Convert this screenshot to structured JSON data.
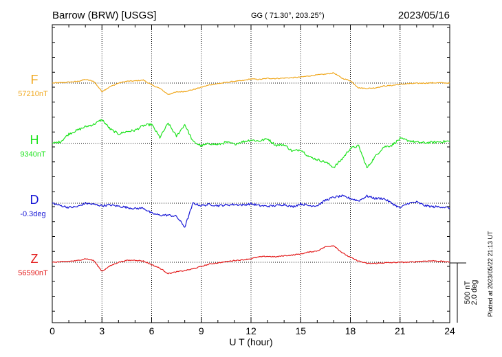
{
  "header": {
    "station": "Barrow (BRW)  [USGS]",
    "coords": "GG ( 71.30°, 203.25°)",
    "date": "2023/05/16"
  },
  "footer": {
    "xlabel": "U T (hour)",
    "plotted_note": "Plotted at 2023/05/22 21:13 UT"
  },
  "scale": {
    "line1": "500 nT",
    "line2": "2.0 deg"
  },
  "chart_data": {
    "type": "line",
    "title": "Barrow (BRW)  [USGS]",
    "xlabel": "U T (hour)",
    "xlim": [
      0,
      24
    ],
    "x_ticks": [
      "0",
      "3",
      "6",
      "9",
      "12",
      "15",
      "18",
      "21",
      "24"
    ],
    "grid": true,
    "x": [
      0,
      0.5,
      1,
      1.5,
      2,
      2.5,
      3,
      3.5,
      4,
      4.5,
      5,
      5.5,
      6,
      6.5,
      7,
      7.5,
      8,
      8.5,
      9,
      9.5,
      10,
      10.5,
      11,
      11.5,
      12,
      12.5,
      13,
      13.5,
      14,
      14.5,
      15,
      15.5,
      16,
      16.5,
      17,
      17.5,
      18,
      18.5,
      19,
      19.5,
      20,
      20.5,
      21,
      21.5,
      22,
      22.5,
      23,
      23.5,
      24
    ],
    "series": [
      {
        "name": "F",
        "baseline": "57210nT",
        "color": "#f0a81e",
        "values": [
          0,
          3,
          8,
          13,
          30,
          15,
          -70,
          -30,
          0,
          15,
          18,
          25,
          -15,
          -45,
          -95,
          -75,
          -70,
          -55,
          -35,
          -15,
          -5,
          5,
          15,
          20,
          35,
          30,
          40,
          38,
          42,
          45,
          50,
          60,
          68,
          75,
          85,
          40,
          20,
          -40,
          -45,
          -40,
          -25,
          -20,
          -10,
          -5,
          -2,
          0,
          2,
          2,
          0
        ],
        "noise": 8
      },
      {
        "name": "H",
        "baseline": "9340nT",
        "color": "#1de31d",
        "values": [
          0,
          15,
          80,
          110,
          140,
          160,
          200,
          120,
          80,
          100,
          110,
          150,
          160,
          50,
          170,
          60,
          160,
          15,
          -20,
          0,
          -10,
          10,
          -5,
          15,
          30,
          20,
          40,
          -15,
          -10,
          -65,
          -50,
          -110,
          -135,
          -155,
          -200,
          -130,
          -40,
          -20,
          -205,
          -110,
          -30,
          -15,
          40,
          25,
          10,
          5,
          10,
          15,
          20
        ],
        "noise": 20
      },
      {
        "name": "D",
        "baseline": "-0.3deg",
        "color": "#1616d6",
        "values": [
          0,
          -20,
          -35,
          -30,
          0,
          -10,
          -20,
          -15,
          -25,
          -35,
          -45,
          -40,
          -85,
          -100,
          -100,
          -110,
          -200,
          0,
          -20,
          -10,
          -20,
          -15,
          -10,
          -15,
          -5,
          -20,
          -25,
          -20,
          -10,
          -30,
          -5,
          -20,
          -20,
          25,
          50,
          60,
          40,
          20,
          60,
          40,
          40,
          0,
          -40,
          0,
          10,
          -20,
          -30,
          -30,
          -40
        ],
        "noise": 18
      },
      {
        "name": "Z",
        "baseline": "56590nT",
        "color": "#e31b1b",
        "values": [
          0,
          3,
          8,
          13,
          30,
          15,
          -75,
          -30,
          0,
          15,
          18,
          10,
          -20,
          -50,
          -95,
          -80,
          -70,
          -55,
          -35,
          -15,
          -5,
          5,
          15,
          20,
          30,
          45,
          50,
          45,
          55,
          60,
          70,
          85,
          95,
          130,
          140,
          80,
          40,
          10,
          -10,
          -10,
          -5,
          -3,
          0,
          0,
          5,
          10,
          12,
          8,
          0
        ],
        "noise": 8
      }
    ]
  }
}
